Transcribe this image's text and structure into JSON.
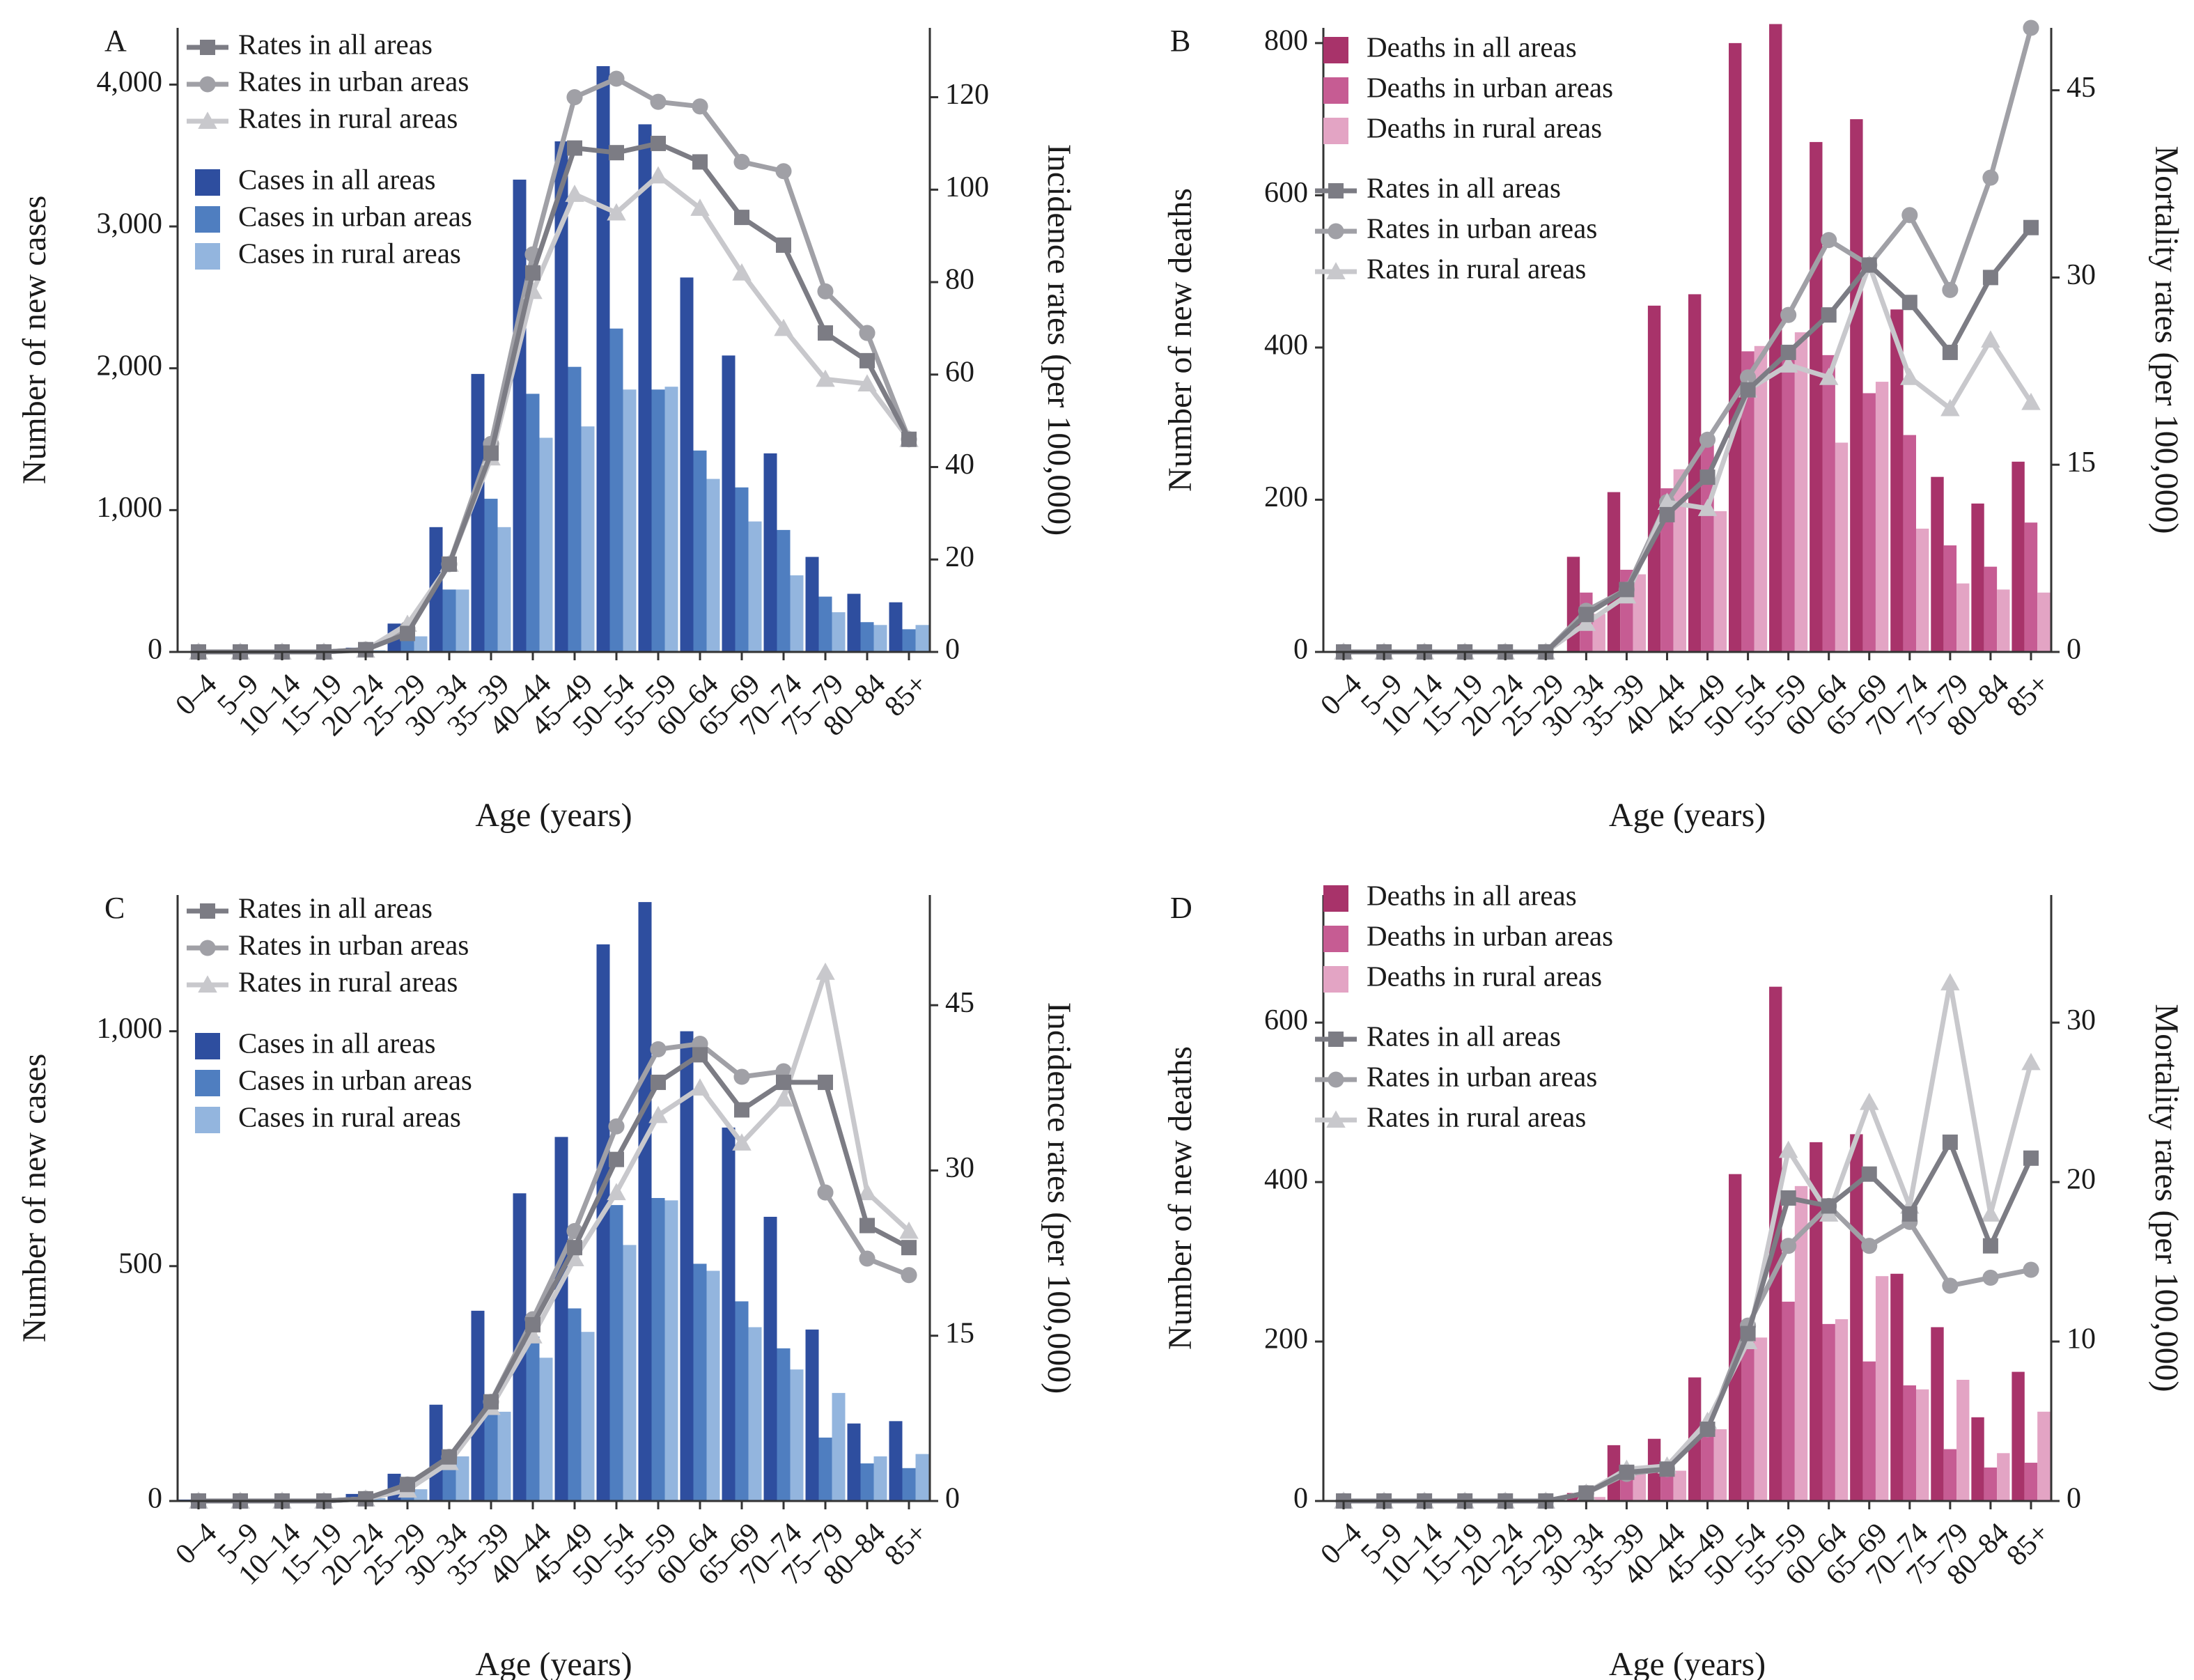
{
  "age_groups": [
    "0–4",
    "5–9",
    "10–14",
    "15–19",
    "20–24",
    "25–29",
    "30–34",
    "35–39",
    "40–44",
    "45–49",
    "50–54",
    "55–59",
    "60–64",
    "65–69",
    "70–74",
    "75–79",
    "80–84",
    "85+"
  ],
  "x_label": "Age (years)",
  "colors": {
    "blue_all": "#2e4e9f",
    "blue_urban": "#4f7ec0",
    "blue_rural": "#93b5de",
    "pink_all": "#a8336a",
    "pink_urban": "#c65c93",
    "pink_rural": "#e3a4c4",
    "rate_all": "#7c7c84",
    "rate_urban": "#a0a0a6",
    "rate_rural": "#c8c8cc",
    "axis": "#333333"
  },
  "chart_data": [
    {
      "panel": "A",
      "type": "bar+line",
      "left_axis": {
        "label": "Number of new cases",
        "range": [
          0,
          4400
        ],
        "ticks": [
          0,
          1000,
          2000,
          3000,
          4000
        ],
        "tick_labels": [
          "0",
          "1,000",
          "2,000",
          "3,000",
          "4,000"
        ]
      },
      "right_axis": {
        "label": "Incidence rates (per 100,000)",
        "range": [
          0,
          135
        ],
        "ticks": [
          0,
          20,
          40,
          60,
          80,
          100,
          120
        ],
        "tick_labels": [
          "0",
          "20",
          "40",
          "60",
          "80",
          "100",
          "120"
        ]
      },
      "bar_series": [
        {
          "name": "Cases in all areas",
          "values": [
            3,
            3,
            3,
            3,
            30,
            200,
            880,
            1960,
            3330,
            3600,
            4130,
            3720,
            2640,
            2090,
            1400,
            670,
            410,
            350
          ]
        },
        {
          "name": "Cases in urban areas",
          "values": [
            2,
            2,
            2,
            2,
            18,
            140,
            440,
            1080,
            1820,
            2010,
            2280,
            1850,
            1420,
            1160,
            860,
            390,
            210,
            160
          ]
        },
        {
          "name": "Cases in rural areas",
          "values": [
            1,
            1,
            1,
            1,
            12,
            110,
            440,
            880,
            1510,
            1590,
            1850,
            1870,
            1220,
            920,
            540,
            280,
            190,
            190
          ]
        }
      ],
      "line_series": [
        {
          "name": "Rates in all areas",
          "marker": "square",
          "values": [
            0,
            0,
            0,
            0,
            0.5,
            4,
            19,
            43,
            82,
            109,
            108,
            110,
            106,
            94,
            88,
            69,
            63,
            46
          ]
        },
        {
          "name": "Rates in urban areas",
          "marker": "circle",
          "values": [
            0,
            0,
            0,
            0,
            0.5,
            5,
            19,
            45,
            86,
            120,
            124,
            119,
            118,
            106,
            104,
            78,
            69,
            46
          ]
        },
        {
          "name": "Rates in rural areas",
          "marker": "triangle",
          "values": [
            0,
            0,
            0,
            0,
            0.4,
            6,
            19,
            42,
            78,
            99,
            95,
            103,
            96,
            82,
            70,
            59,
            58,
            46
          ]
        }
      ],
      "legend_order": [
        "Rates in all areas",
        "Rates in urban areas",
        "Rates in rural areas",
        "Cases in all areas",
        "Cases in urban areas",
        "Cases in rural areas"
      ]
    },
    {
      "panel": "B",
      "type": "bar+line",
      "left_axis": {
        "label": "Number of new deaths",
        "range": [
          0,
          820
        ],
        "ticks": [
          0,
          200,
          400,
          600,
          800
        ],
        "tick_labels": [
          "0",
          "200",
          "400",
          "600",
          "800"
        ]
      },
      "right_axis": {
        "label": "Mortality rates (per 100,000)",
        "range": [
          0,
          50
        ],
        "ticks": [
          0,
          15,
          30,
          45
        ],
        "tick_labels": [
          "0",
          "15",
          "30",
          "45"
        ]
      },
      "bar_series": [
        {
          "name": "Deaths in all areas",
          "values": [
            0,
            0,
            0,
            0,
            0,
            3,
            125,
            210,
            455,
            470,
            800,
            825,
            670,
            700,
            450,
            230,
            195,
            250
          ]
        },
        {
          "name": "Deaths in urban areas",
          "values": [
            0,
            0,
            0,
            0,
            0,
            2,
            78,
            108,
            215,
            285,
            395,
            400,
            390,
            340,
            285,
            140,
            112,
            170
          ]
        },
        {
          "name": "Deaths in rural areas",
          "values": [
            0,
            0,
            0,
            0,
            0,
            1,
            50,
            102,
            240,
            185,
            402,
            420,
            275,
            355,
            162,
            90,
            82,
            78
          ]
        }
      ],
      "line_series": [
        {
          "name": "Rates in all areas",
          "marker": "square",
          "values": [
            0,
            0,
            0,
            0,
            0,
            0,
            3,
            5,
            11,
            14,
            21,
            24,
            27,
            31,
            28,
            24,
            30,
            34
          ]
        },
        {
          "name": "Rates in urban areas",
          "marker": "circle",
          "values": [
            0,
            0,
            0,
            0,
            0,
            0,
            3.3,
            5,
            12,
            17,
            22,
            27,
            33,
            31,
            35,
            29,
            38,
            50
          ]
        },
        {
          "name": "Rates in rural areas",
          "marker": "triangle",
          "values": [
            0,
            0,
            0,
            0,
            0,
            0,
            2.3,
            4.5,
            12,
            11.5,
            21,
            23,
            22,
            31,
            22,
            19.5,
            25,
            20
          ]
        }
      ],
      "legend_order": [
        "Deaths in all areas",
        "Deaths in urban areas",
        "Deaths in rural areas",
        "Rates in all areas",
        "Rates in urban areas",
        "Rates in rural areas"
      ]
    },
    {
      "panel": "C",
      "type": "bar+line",
      "left_axis": {
        "label": "Number of new cases",
        "range": [
          0,
          1290
        ],
        "ticks": [
          0,
          500,
          1000
        ],
        "tick_labels": [
          "0",
          "500",
          "1,000"
        ]
      },
      "right_axis": {
        "label": "Incidence rates (per 100,000)",
        "range": [
          0,
          55
        ],
        "ticks": [
          0,
          15,
          30,
          45
        ],
        "tick_labels": [
          "0",
          "15",
          "30",
          "45"
        ]
      },
      "bar_series": [
        {
          "name": "Cases in all areas",
          "values": [
            3,
            3,
            3,
            3,
            15,
            58,
            205,
            405,
            655,
            775,
            1185,
            1275,
            1000,
            795,
            605,
            365,
            165,
            170
          ]
        },
        {
          "name": "Cases in urban areas",
          "values": [
            2,
            2,
            2,
            2,
            9,
            35,
            95,
            220,
            350,
            410,
            630,
            645,
            505,
            425,
            325,
            135,
            80,
            70
          ]
        },
        {
          "name": "Cases in rural areas",
          "values": [
            1,
            1,
            1,
            1,
            6,
            25,
            95,
            190,
            305,
            360,
            545,
            640,
            490,
            370,
            280,
            230,
            95,
            100
          ]
        }
      ],
      "line_series": [
        {
          "name": "Rates in all areas",
          "marker": "square",
          "values": [
            0,
            0,
            0,
            0,
            0.2,
            1.5,
            4,
            9,
            16,
            23,
            31,
            38,
            40.5,
            35.5,
            38,
            38,
            25,
            23
          ]
        },
        {
          "name": "Rates in urban areas",
          "marker": "circle",
          "values": [
            0,
            0,
            0,
            0,
            0.2,
            1.5,
            4,
            9,
            16.5,
            24.5,
            34,
            41,
            41.5,
            38.5,
            39,
            28,
            22,
            20.5
          ]
        },
        {
          "name": "Rates in rural areas",
          "marker": "triangle",
          "values": [
            0,
            0,
            0,
            0,
            0.2,
            1,
            3.5,
            8.5,
            15,
            22,
            28,
            35,
            37.5,
            32.5,
            36.5,
            48,
            28,
            24.5
          ]
        }
      ],
      "legend_order": [
        "Rates in all areas",
        "Rates in urban areas",
        "Rates in rural areas",
        "Cases in all areas",
        "Cases in urban areas",
        "Cases in rural areas"
      ]
    },
    {
      "panel": "D",
      "type": "bar+line",
      "left_axis": {
        "label": "Number of new deaths",
        "range": [
          0,
          760
        ],
        "ticks": [
          0,
          200,
          400,
          600
        ],
        "tick_labels": [
          "0",
          "200",
          "400",
          "600"
        ]
      },
      "right_axis": {
        "label": "Mortality rates (per 100,000)",
        "range": [
          0,
          38
        ],
        "ticks": [
          0,
          10,
          20,
          30
        ],
        "tick_labels": [
          "0",
          "10",
          "20",
          "30"
        ]
      },
      "bar_series": [
        {
          "name": "Deaths in all areas",
          "values": [
            0,
            0,
            0,
            0,
            0,
            3,
            10,
            70,
            78,
            155,
            410,
            645,
            450,
            460,
            285,
            218,
            105,
            162
          ]
        },
        {
          "name": "Deaths in urban areas",
          "values": [
            0,
            0,
            0,
            0,
            0,
            2,
            6,
            38,
            40,
            82,
            200,
            250,
            222,
            175,
            145,
            65,
            42,
            48
          ]
        },
        {
          "name": "Deaths in rural areas",
          "values": [
            0,
            0,
            0,
            0,
            0,
            1,
            5,
            34,
            38,
            90,
            205,
            395,
            228,
            282,
            140,
            152,
            60,
            112
          ]
        }
      ],
      "line_series": [
        {
          "name": "Rates in all areas",
          "marker": "square",
          "values": [
            0,
            0,
            0,
            0,
            0,
            0,
            0.5,
            1.8,
            2,
            4.5,
            10.5,
            19,
            18.5,
            20.5,
            18,
            22.5,
            16,
            21.5
          ]
        },
        {
          "name": "Rates in urban areas",
          "marker": "circle",
          "values": [
            0,
            0,
            0,
            0,
            0,
            0,
            0.5,
            1.7,
            2,
            4.5,
            11,
            16,
            18.5,
            16,
            17.5,
            13.5,
            14,
            14.5
          ]
        },
        {
          "name": "Rates in rural areas",
          "marker": "triangle",
          "values": [
            0,
            0,
            0,
            0,
            0,
            0,
            0.5,
            2,
            2.2,
            5,
            10,
            22,
            18,
            25,
            18.5,
            32.5,
            18,
            27.5
          ]
        }
      ],
      "legend_order": [
        "Deaths in all areas",
        "Deaths in urban areas",
        "Deaths in rural areas",
        "Rates in all areas",
        "Rates in urban areas",
        "Rates in rural areas"
      ]
    }
  ]
}
